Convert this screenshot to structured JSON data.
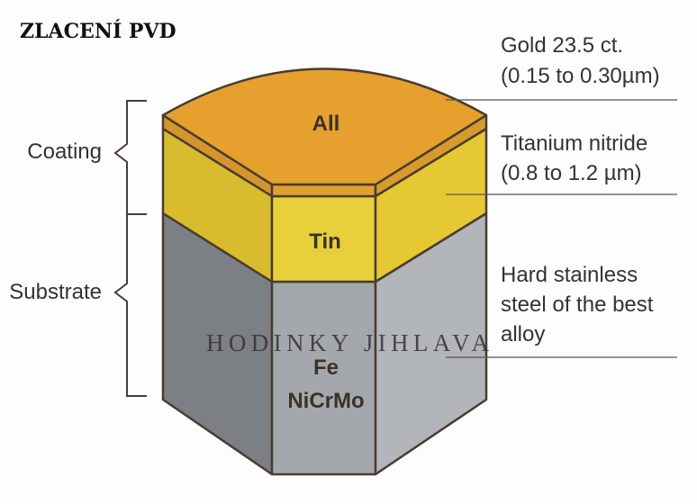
{
  "title": "ZLACENÍ PVD",
  "brackets": {
    "coating": "Coating",
    "substrate": "Substrate"
  },
  "materials": {
    "top": "All",
    "middle": "Tin",
    "bottom_line1": "Fe",
    "bottom_line2": "NiCrMo"
  },
  "annotations": {
    "gold_line1": "Gold 23.5 ct.",
    "gold_line2": "(0.15 to 0.30µm)",
    "tin_line1": "Titanium nitride",
    "tin_line2": "(0.8 to 1.2 µm)",
    "steel_line1": "Hard stainless",
    "steel_line2": "steel of the best",
    "steel_line3": "alloy"
  },
  "watermark": "HODINKY JIHLAVA",
  "colors": {
    "gold": "#e6a02e",
    "gold_band": "#d4962c",
    "titanium_nitride": "#e4c832",
    "steel": "#a6aaae",
    "outline": "#4a3c2e"
  }
}
